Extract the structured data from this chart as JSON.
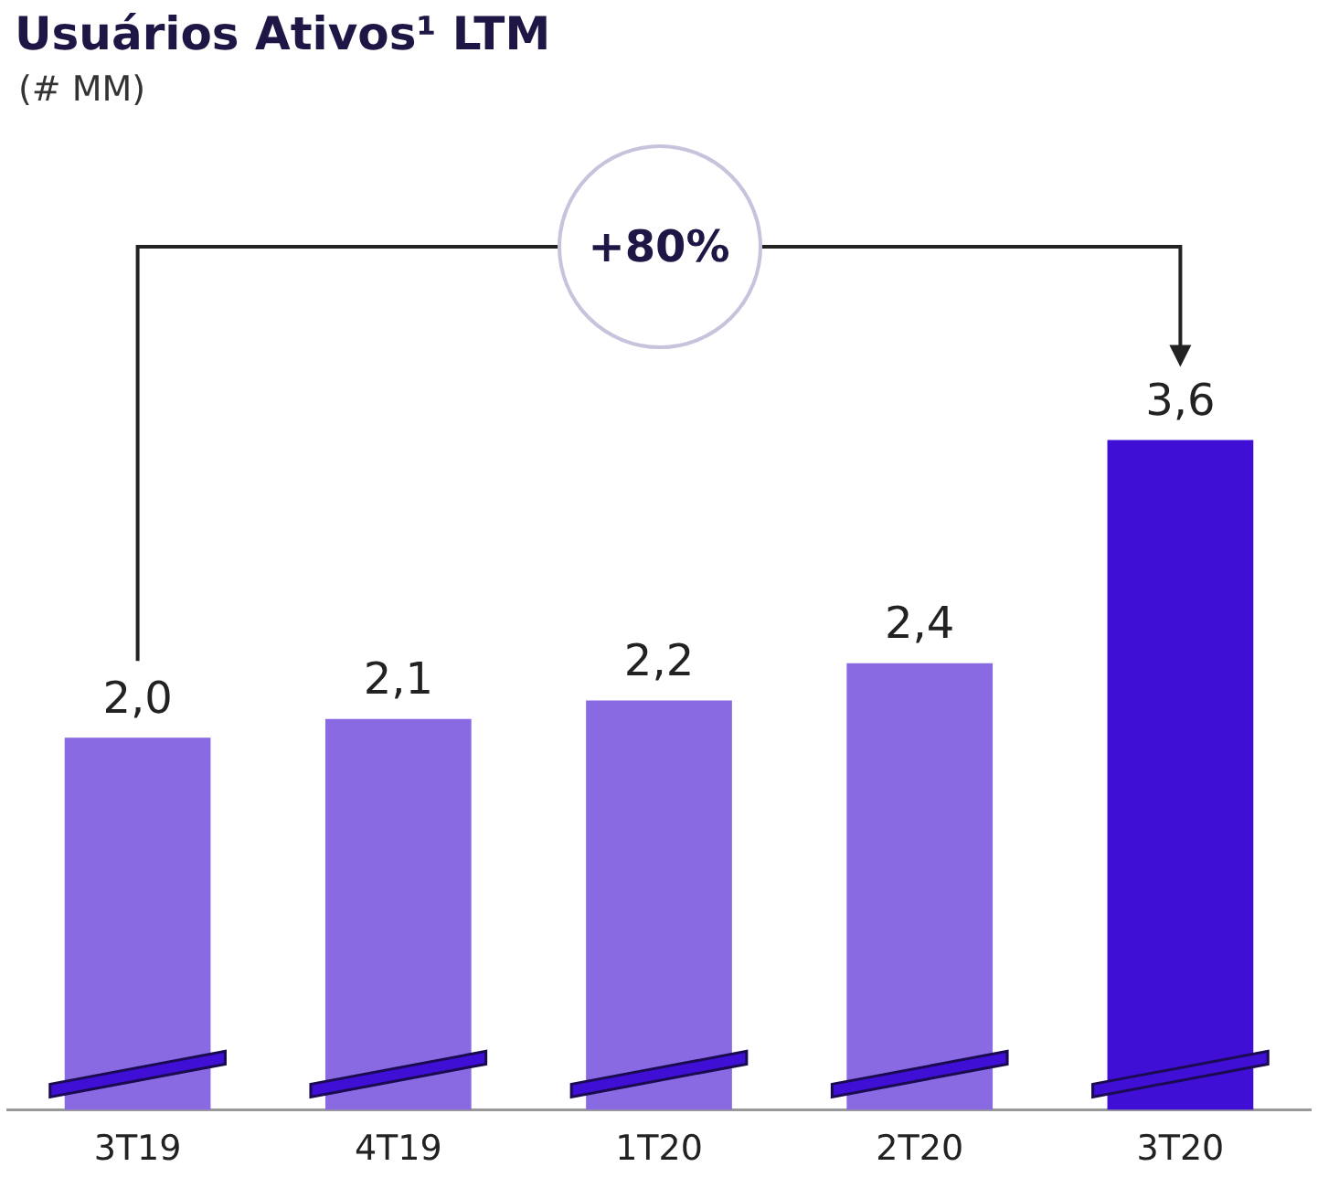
{
  "chart_data": {
    "type": "bar",
    "title": "Usuários Ativos¹ LTM",
    "subtitle": "(# MM)",
    "categories": [
      "3T19",
      "4T19",
      "1T20",
      "2T20",
      "3T20"
    ],
    "values": [
      2.0,
      2.1,
      2.2,
      2.4,
      3.6
    ],
    "colors": [
      "#8a6ae2",
      "#8a6ae2",
      "#8a6ae2",
      "#8a6ae2",
      "#3f0fd6"
    ],
    "value_labels": [
      "2,0",
      "2,1",
      "2,2",
      "2,4",
      "3,6"
    ],
    "annotations": [
      "+80%"
    ],
    "grid": false,
    "legend": false
  }
}
